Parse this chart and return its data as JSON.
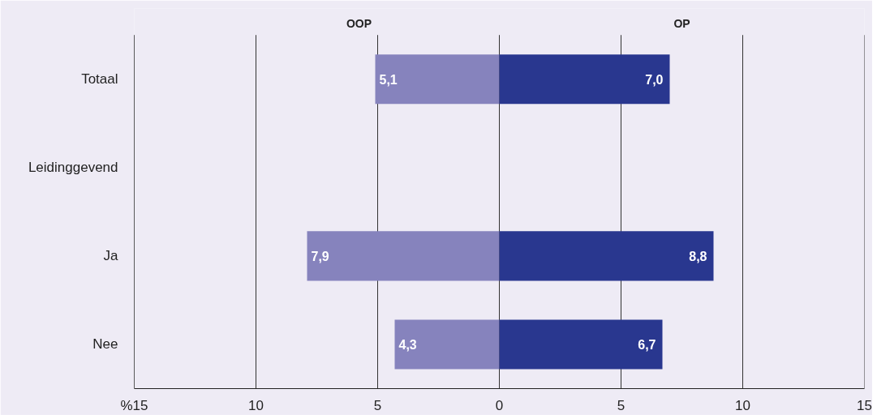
{
  "chart_data": {
    "type": "bar",
    "orientation": "horizontal",
    "categories": [
      "Totaal",
      "Leidinggevend",
      "Ja",
      "Nee"
    ],
    "series": [
      {
        "name": "OOP",
        "color": "#8683bd",
        "values": [
          5.1,
          null,
          7.9,
          4.3
        ],
        "base": [
          -5.1,
          null,
          -7.9,
          -4.3
        ],
        "value_labels": [
          "5,1",
          null,
          "7,9",
          "4,3"
        ]
      },
      {
        "name": "OP",
        "color": "#29378f",
        "values": [
          7.0,
          null,
          8.8,
          6.7
        ],
        "value_labels": [
          "7,0",
          null,
          "8,8",
          "6,7"
        ]
      }
    ],
    "xlim": [
      -15,
      15
    ],
    "xticks": [
      {
        "value": -15,
        "label": "%15"
      },
      {
        "value": -10,
        "label": "10"
      },
      {
        "value": -5,
        "label": "5"
      },
      0,
      5,
      10,
      15
    ],
    "grid": "x"
  }
}
